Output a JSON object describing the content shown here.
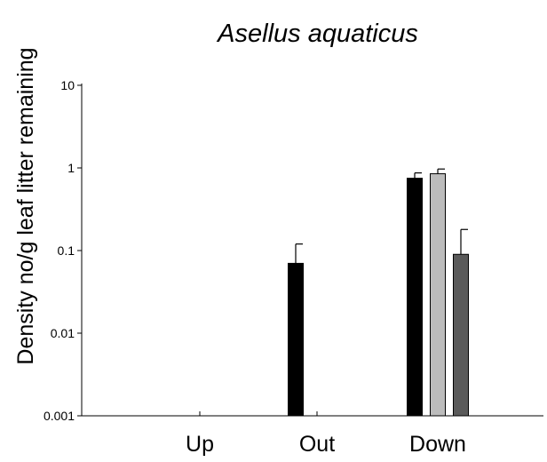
{
  "chart_data": {
    "type": "bar",
    "title": "Asellus aquaticus",
    "xlabel": "",
    "ylabel": "Density no/g leaf litter remaining",
    "yscale": "log",
    "ylim": [
      0.001,
      10
    ],
    "yticks": [
      0.001,
      0.01,
      0.1,
      1,
      10
    ],
    "ytick_labels": [
      "0.001",
      "0.01",
      "0.1",
      "1",
      "10"
    ],
    "categories": [
      "Up",
      "Out",
      "Down"
    ],
    "series": [
      {
        "color": "#000000",
        "values": [
          null,
          0.07,
          0.75
        ],
        "errors": [
          null,
          0.05,
          0.12
        ]
      },
      {
        "color": "#bcbcbc",
        "values": [
          null,
          null,
          0.85
        ],
        "errors": [
          null,
          null,
          0.12
        ]
      },
      {
        "color": "#5a5a5a",
        "values": [
          null,
          null,
          0.09
        ],
        "errors": [
          null,
          null,
          0.09
        ]
      }
    ],
    "grid": false,
    "legend": "none"
  }
}
